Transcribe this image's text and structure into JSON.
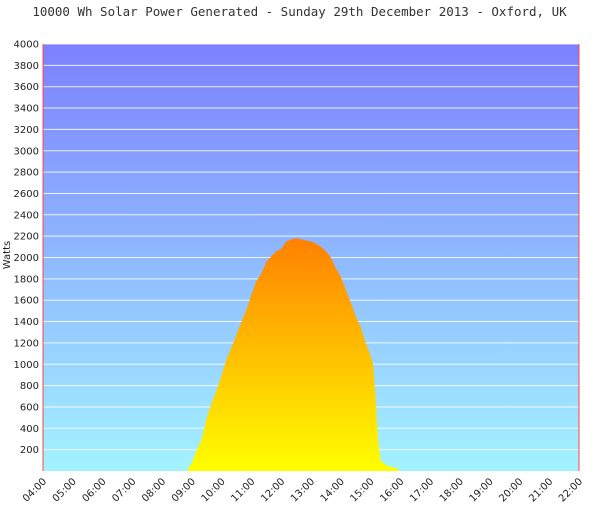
{
  "chart_data": {
    "type": "area",
    "title": "10000 Wh Solar Power Generated - Sunday 29th December 2013 - Oxford, UK",
    "xlabel": "",
    "ylabel": "Watts",
    "ylim": [
      0,
      4000
    ],
    "yticks": [
      200,
      400,
      600,
      800,
      1000,
      1200,
      1400,
      1600,
      1800,
      2000,
      2200,
      2400,
      2600,
      2800,
      3000,
      3200,
      3400,
      3600,
      3800,
      4000
    ],
    "xtick_labels": [
      "04:00",
      "05:00",
      "06:00",
      "07:00",
      "08:00",
      "09:00",
      "10:00",
      "11:00",
      "12:00",
      "13:00",
      "14:00",
      "15:00",
      "16:00",
      "17:00",
      "18:00",
      "19:00",
      "20:00",
      "21:00",
      "22:00"
    ],
    "xlim": [
      "04:00",
      "22:00"
    ],
    "grid": true,
    "colors": {
      "sky_top": "#7b80ff",
      "sky_bottom": "#a3f3ff",
      "area_top": "#ff8000",
      "area_bottom": "#ffff00",
      "axis": "#ff4444",
      "grid": "#ffffff"
    },
    "series": [
      {
        "x": [
          "08:50",
          "09:00",
          "09:10",
          "09:20",
          "09:30",
          "09:40",
          "09:50",
          "10:00",
          "10:10",
          "10:20",
          "10:30",
          "10:40",
          "10:50",
          "11:00",
          "11:10",
          "11:20",
          "11:30",
          "11:40",
          "11:50",
          "12:00",
          "12:10",
          "12:20",
          "12:30",
          "12:40",
          "12:50",
          "13:00",
          "13:10",
          "13:20",
          "13:30",
          "13:40",
          "13:50",
          "14:00",
          "14:10",
          "14:20",
          "14:30",
          "14:40",
          "14:50",
          "15:00",
          "15:05",
          "15:10",
          "15:15",
          "15:20",
          "15:30",
          "15:40",
          "15:50",
          "16:00"
        ],
        "values": [
          0,
          80,
          200,
          300,
          500,
          640,
          760,
          900,
          1050,
          1160,
          1280,
          1400,
          1510,
          1650,
          1780,
          1850,
          1960,
          2010,
          2060,
          2080,
          2150,
          2170,
          2180,
          2170,
          2160,
          2150,
          2130,
          2100,
          2060,
          2000,
          1900,
          1820,
          1700,
          1580,
          1450,
          1350,
          1200,
          1080,
          1000,
          700,
          300,
          100,
          60,
          40,
          30,
          0
        ]
      }
    ]
  }
}
